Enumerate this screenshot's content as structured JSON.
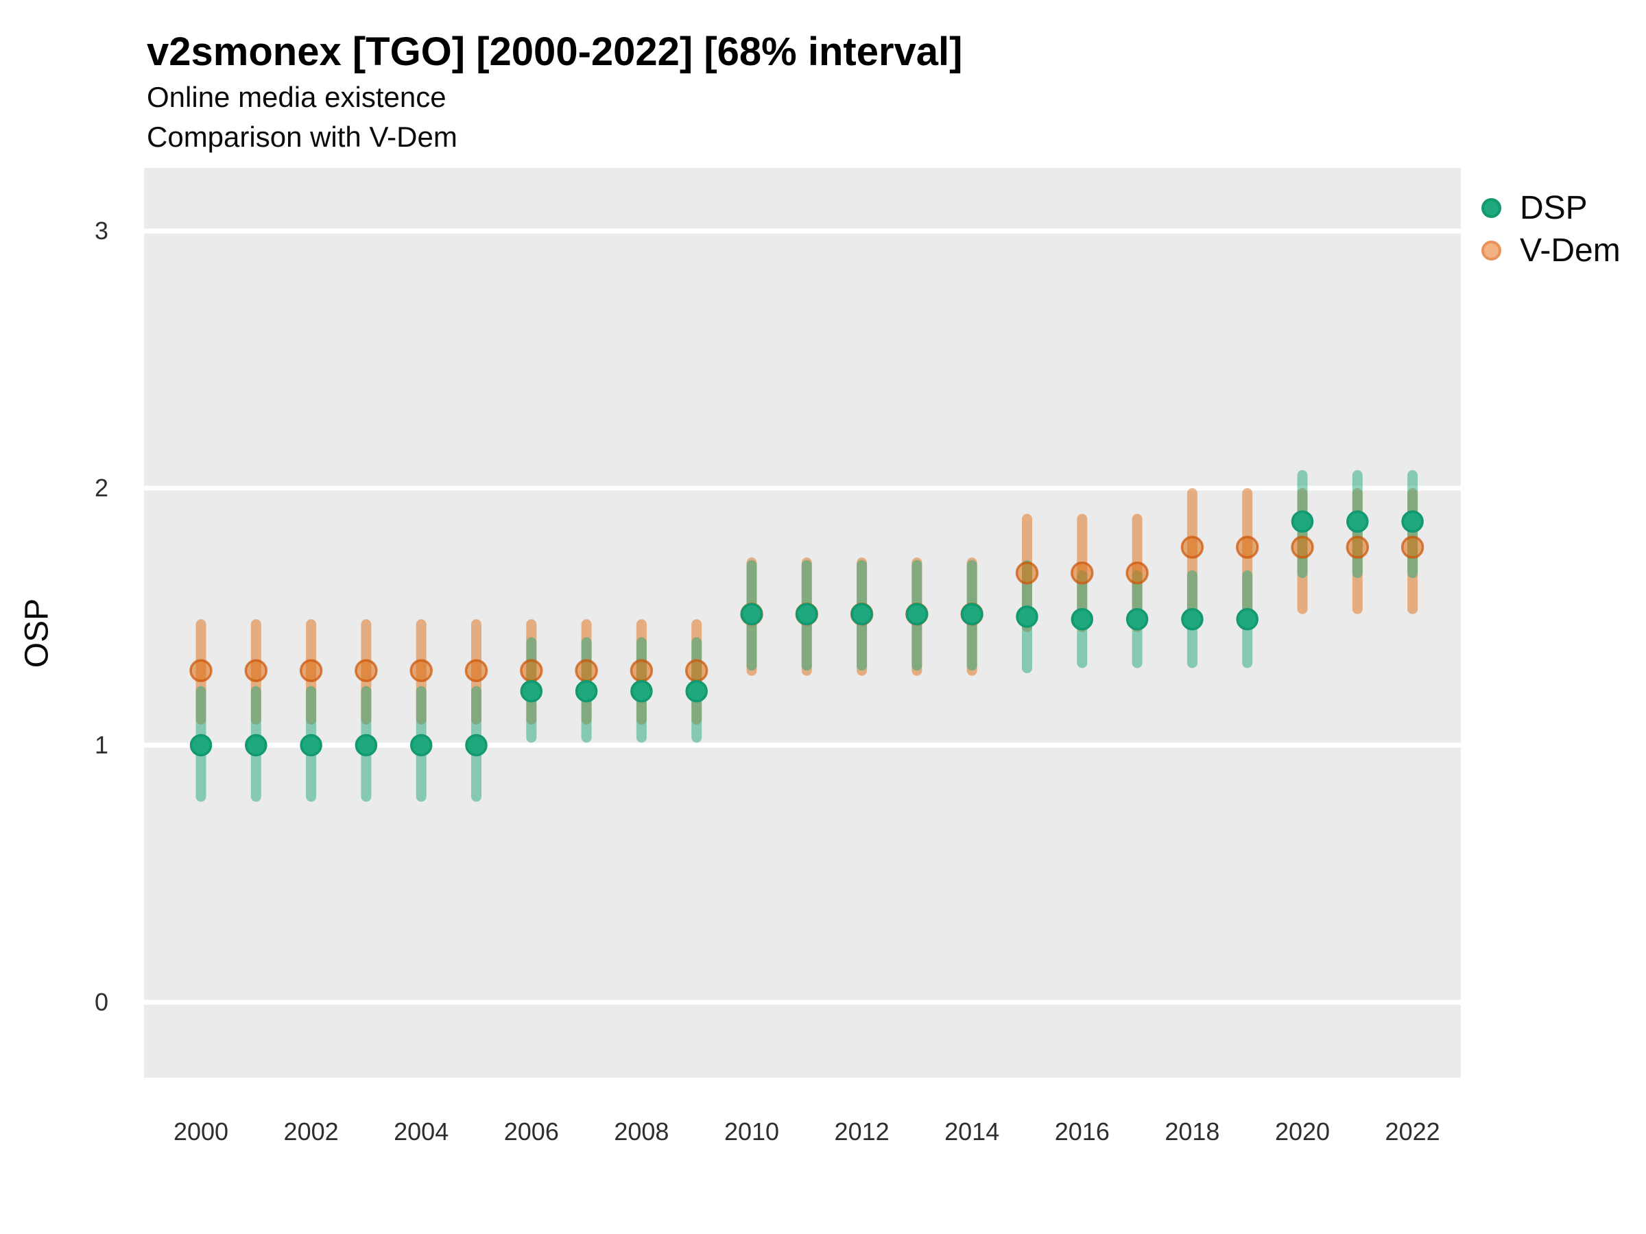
{
  "header": {
    "title": "v2smonex [TGO] [2000-2022] [68% interval]",
    "subtitle1": "Online media existence",
    "subtitle2": "Comparison with V-Dem"
  },
  "axes": {
    "y_label": "OSP",
    "y_ticks": [
      3,
      2,
      1,
      0
    ],
    "x_ticks": [
      2000,
      2002,
      2004,
      2006,
      2008,
      2010,
      2012,
      2014,
      2016,
      2018,
      2020,
      2022
    ]
  },
  "legend": {
    "items": [
      {
        "label": "DSP",
        "series": "dsp"
      },
      {
        "label": "V-Dem",
        "series": "vdem"
      }
    ],
    "position": "right-top"
  },
  "colors": {
    "panel_bg": "#EBEBEB",
    "gridline": "#FFFFFF",
    "dsp_fill": "#1FA87D",
    "dsp_stroke": "#129970",
    "dsp_interval": "rgba(34,168,124,0.5)",
    "vdem_fill": "rgba(221,110,16,0.55)",
    "vdem_stroke": "rgba(205,85,5,0.72)",
    "vdem_interval": "rgba(224,103,8,0.47)"
  },
  "chart_data": {
    "type": "pointrange-scatter",
    "title": "v2smonex [TGO] [2000-2022] [68% interval]",
    "subtitle": [
      "Online media existence",
      "Comparison with V-Dem"
    ],
    "interval": "68%",
    "xlabel": "",
    "ylabel": "OSP",
    "ylim": [
      -0.29,
      3.24
    ],
    "x_range": [
      2000,
      2022
    ],
    "grid": "horizontal-major-only",
    "legend_position": "right-top",
    "x": [
      2000,
      2001,
      2002,
      2003,
      2004,
      2005,
      2006,
      2007,
      2008,
      2009,
      2010,
      2011,
      2012,
      2013,
      2014,
      2015,
      2016,
      2017,
      2018,
      2019,
      2020,
      2021,
      2022
    ],
    "series": [
      {
        "name": "DSP",
        "est": [
          1.0,
          1.0,
          1.0,
          1.0,
          1.0,
          1.0,
          1.21,
          1.21,
          1.21,
          1.21,
          1.51,
          1.51,
          1.51,
          1.51,
          1.51,
          1.5,
          1.49,
          1.49,
          1.49,
          1.49,
          1.87,
          1.87,
          1.87
        ],
        "lo": [
          0.8,
          0.8,
          0.8,
          0.8,
          0.8,
          0.8,
          1.03,
          1.03,
          1.03,
          1.03,
          1.31,
          1.31,
          1.31,
          1.31,
          1.31,
          1.3,
          1.32,
          1.32,
          1.32,
          1.32,
          1.67,
          1.67,
          1.67
        ],
        "hi": [
          1.21,
          1.21,
          1.21,
          1.21,
          1.21,
          1.21,
          1.4,
          1.4,
          1.4,
          1.4,
          1.7,
          1.7,
          1.7,
          1.7,
          1.7,
          1.7,
          1.66,
          1.66,
          1.66,
          1.66,
          2.05,
          2.05,
          2.05
        ]
      },
      {
        "name": "V-Dem",
        "est": [
          1.29,
          1.29,
          1.29,
          1.29,
          1.29,
          1.29,
          1.29,
          1.29,
          1.29,
          1.29,
          1.51,
          1.51,
          1.51,
          1.51,
          1.51,
          1.67,
          1.67,
          1.67,
          1.77,
          1.77,
          1.77,
          1.77,
          1.77
        ],
        "lo": [
          1.1,
          1.1,
          1.1,
          1.1,
          1.1,
          1.1,
          1.1,
          1.1,
          1.1,
          1.1,
          1.29,
          1.29,
          1.29,
          1.29,
          1.29,
          1.46,
          1.46,
          1.46,
          1.53,
          1.53,
          1.53,
          1.53,
          1.53
        ],
        "hi": [
          1.47,
          1.47,
          1.47,
          1.47,
          1.47,
          1.47,
          1.47,
          1.47,
          1.47,
          1.47,
          1.71,
          1.71,
          1.71,
          1.71,
          1.71,
          1.88,
          1.88,
          1.88,
          1.98,
          1.98,
          1.98,
          1.98,
          1.98
        ]
      }
    ]
  }
}
